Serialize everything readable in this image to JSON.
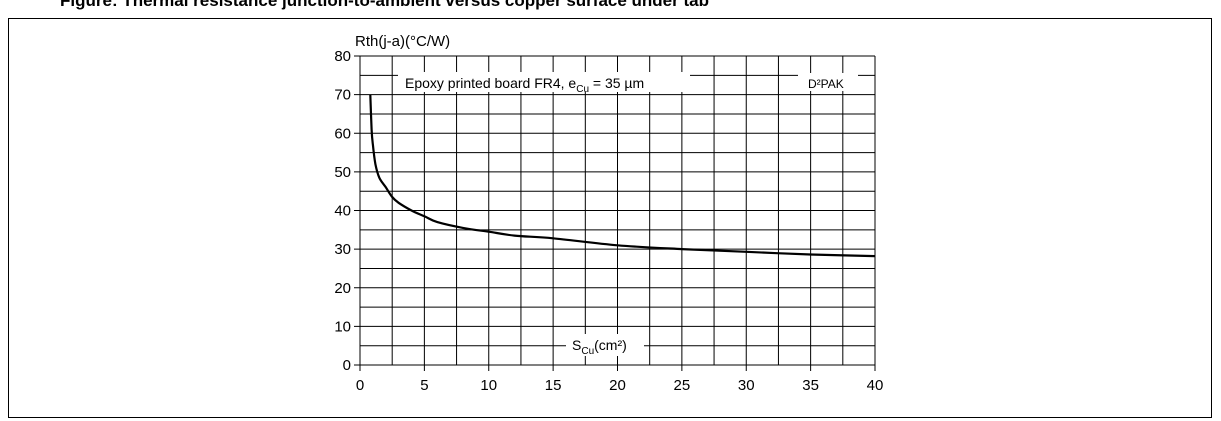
{
  "caption": "Figure: Thermal resistance junction-to-ambient versus copper surface under tab",
  "chart_data": {
    "type": "line",
    "ylabel": "Rth(j-a)(°C/W)",
    "xlabel_main": "S",
    "xlabel_sub": "Cu",
    "xlabel_rest": "(cm²)",
    "annotation_main": "Epoxy printed board FR4, e",
    "annotation_sub": "Cu",
    "annotation_rest": " = 35 µm",
    "package": "D²PAK",
    "xlim": [
      0,
      40
    ],
    "ylim": [
      0,
      80
    ],
    "xticks": [
      0,
      5,
      10,
      15,
      20,
      25,
      30,
      35,
      40
    ],
    "yticks": [
      0,
      10,
      20,
      30,
      40,
      50,
      60,
      70,
      80
    ],
    "grid": true,
    "series": [
      {
        "color": "#000000",
        "x": [
          0.8,
          0.9,
          1,
          1.2,
          1.5,
          2,
          2.5,
          3,
          4,
          5,
          6,
          8,
          10,
          12,
          15,
          20,
          25,
          30,
          35,
          40
        ],
        "y": [
          70,
          61,
          57,
          52,
          48.5,
          46,
          43.5,
          42,
          40,
          38.5,
          37,
          35.5,
          34.5,
          33.5,
          32.8,
          31,
          30,
          29.3,
          28.6,
          28.2
        ]
      }
    ]
  }
}
